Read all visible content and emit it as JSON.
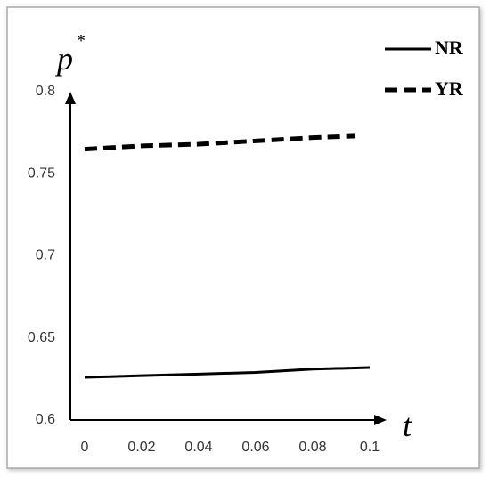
{
  "chart_data": {
    "type": "line",
    "ylabel": "p",
    "ylabel_superscript": "*",
    "xlabel": "t",
    "series": [
      {
        "name": "NR",
        "color": "#000000",
        "dash": false,
        "x": [
          0,
          0.02,
          0.04,
          0.06,
          0.08,
          0.1
        ],
        "values": [
          0.626,
          0.627,
          0.628,
          0.629,
          0.631,
          0.632
        ]
      },
      {
        "name": "YR",
        "color": "#000000",
        "dash": true,
        "x": [
          0,
          0.02,
          0.04,
          0.06,
          0.08,
          0.095
        ],
        "values": [
          0.765,
          0.767,
          0.768,
          0.77,
          0.772,
          0.773
        ]
      }
    ],
    "xlim": [
      0,
      0.1
    ],
    "xticks": [
      0,
      0.02,
      0.04,
      0.06,
      0.08,
      0.1
    ],
    "ylim": [
      0.6,
      0.8
    ],
    "yticks": [
      0.6,
      0.65,
      0.7,
      0.75,
      0.8
    ],
    "legend": "top-right",
    "grid": false
  }
}
